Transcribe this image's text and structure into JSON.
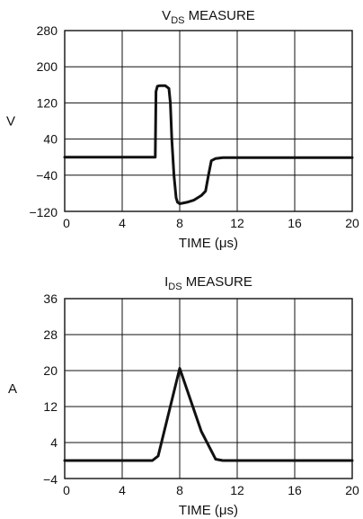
{
  "chart_data": [
    {
      "type": "line",
      "title": {
        "main": "V",
        "subscript": "DS",
        "rest": " MEASURE"
      },
      "xlabel": "TIME (μs)",
      "ylabel": "V",
      "xlim": [
        0,
        20
      ],
      "ylim": [
        -120,
        280
      ],
      "xticks": [
        "0",
        "4",
        "8",
        "12",
        "16",
        "20"
      ],
      "yticks": [
        "280",
        "200",
        "120",
        "40",
        "−40",
        "−120"
      ],
      "grid": true,
      "series": [
        {
          "x": [
            0,
            5.6,
            6.3,
            6.35,
            6.45,
            6.6,
            7.0,
            7.25,
            7.35,
            7.45,
            7.6,
            7.75,
            7.85,
            8.0,
            8.5,
            9.0,
            9.5,
            9.8,
            10.0,
            10.2,
            10.5,
            11.0,
            20.0
          ],
          "y": [
            0,
            0,
            0,
            145,
            157,
            158,
            158,
            152,
            120,
            40,
            -40,
            -90,
            -100,
            -103,
            -100,
            -95,
            -85,
            -75,
            -40,
            -8,
            -3,
            -1,
            -1
          ]
        }
      ],
      "color": "#111111"
    },
    {
      "type": "line",
      "title": {
        "main": "I",
        "subscript": "DS",
        "rest": " MEASURE"
      },
      "xlabel": "TIME (μs)",
      "ylabel": "A",
      "xlim": [
        0,
        20
      ],
      "ylim": [
        -4,
        36
      ],
      "xticks": [
        "0",
        "4",
        "8",
        "12",
        "16",
        "20"
      ],
      "yticks": [
        "36",
        "28",
        "20",
        "12",
        "4",
        "−4"
      ],
      "grid": true,
      "series": [
        {
          "x": [
            0,
            5.6,
            6.1,
            6.5,
            8.0,
            9.5,
            10.5,
            11.0,
            20.0
          ],
          "y": [
            0,
            0,
            0,
            1.0,
            20.5,
            6.5,
            0.3,
            0,
            0
          ]
        }
      ],
      "color": "#111111"
    }
  ]
}
